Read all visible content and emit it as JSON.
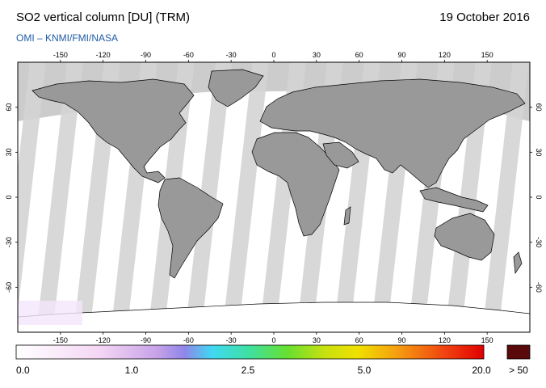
{
  "header": {
    "title": "SO2 vertical column [DU] (TRM)",
    "date": "19 October 2016",
    "credit": "OMI  –  KNMI/FMI/NASA"
  },
  "map": {
    "lon_ticks": [
      "-150",
      "-120",
      "-90",
      "-60",
      "-30",
      "0",
      "30",
      "60",
      "90",
      "120",
      "150"
    ],
    "lat_ticks": [
      "60",
      "30",
      "0",
      "-30",
      "-60"
    ],
    "colors": {
      "frame": "#000000",
      "no_data": "#cccccc",
      "land": "#999999",
      "low_value": "#ffffff"
    }
  },
  "colorbar": {
    "labels": [
      "0.0",
      "1.0",
      "2.5",
      "5.0",
      "20.0"
    ],
    "overflow_label": "> 50",
    "overflow_color": "#5a0a0a"
  }
}
